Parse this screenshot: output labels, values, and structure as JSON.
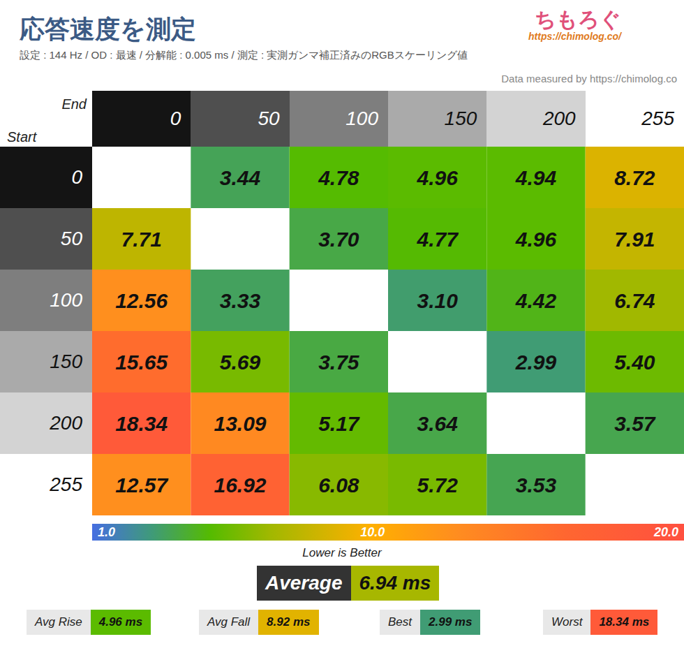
{
  "chart_data": {
    "type": "heatmap",
    "title": "応答速度を測定",
    "subtitle": "設定 : 144 Hz / OD : 最速 / 分解能 : 0.005 ms / 測定 : 実測ガンマ補正済みのRGBスケーリング値",
    "logo": "ちもろぐ",
    "logo_url": "https://chimolog.co/",
    "source": "Data measured by https://chimolog.co",
    "x_label": "End",
    "y_label": "Start",
    "x": [
      0,
      50,
      100,
      150,
      200,
      255
    ],
    "y": [
      0,
      50,
      100,
      150,
      200,
      255
    ],
    "cells": [
      [
        null,
        3.44,
        4.78,
        4.96,
        4.94,
        8.72
      ],
      [
        7.71,
        null,
        3.7,
        4.77,
        4.96,
        7.91
      ],
      [
        12.56,
        3.33,
        null,
        3.1,
        4.42,
        6.74
      ],
      [
        15.65,
        5.69,
        3.75,
        null,
        2.99,
        5.4
      ],
      [
        18.34,
        13.09,
        5.17,
        3.64,
        null,
        3.57
      ],
      [
        12.57,
        16.92,
        6.08,
        5.72,
        3.53,
        null
      ]
    ],
    "cell_labels": [
      [
        null,
        "3.44",
        "4.78",
        "4.96",
        "4.94",
        "8.72"
      ],
      [
        "7.71",
        null,
        "3.70",
        "4.77",
        "4.96",
        "7.91"
      ],
      [
        "12.56",
        "3.33",
        null,
        "3.10",
        "4.42",
        "6.74"
      ],
      [
        "15.65",
        "5.69",
        "3.75",
        null,
        "2.99",
        "5.40"
      ],
      [
        "18.34",
        "13.09",
        "5.17",
        "3.64",
        null,
        "3.57"
      ],
      [
        "12.57",
        "16.92",
        "6.08",
        "5.72",
        "3.53",
        null
      ]
    ],
    "data_labels": true,
    "colorbar_range": [
      1,
      20
    ],
    "colorbar_ticks": [
      {
        "value": 1,
        "label": "1.0"
      },
      {
        "value": 10,
        "label": "10.0"
      },
      {
        "value": 20,
        "label": "20.0"
      }
    ],
    "colorbar_label": "Lower is Better",
    "average": {
      "label": "Average",
      "value": 6.94,
      "value_label": "6.94 ms"
    },
    "summary": {
      "labels": [
        "Avg Rise",
        "Avg Fall",
        "Best",
        "Worst"
      ],
      "values": [
        4.96,
        8.92,
        2.99,
        18.34
      ],
      "value_labels": [
        "4.96 ms",
        "8.92 ms",
        "2.99 ms",
        "18.34 ms"
      ]
    }
  }
}
